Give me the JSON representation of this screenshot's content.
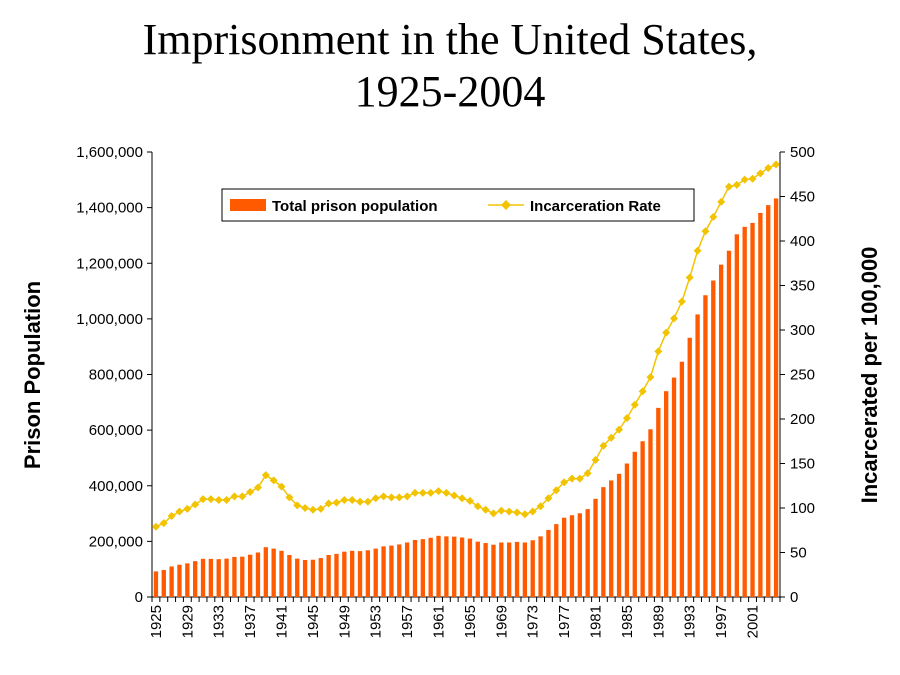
{
  "chart_data": {
    "type": "bar+line",
    "title_line1": "Imprisonment in the United States,",
    "title_line2": "1925-2004",
    "ylabel_left": "Prison Population",
    "ylabel_right": "Incarcerated per 100,000",
    "ylim_left": [
      0,
      1600000
    ],
    "ylim_right": [
      0,
      500
    ],
    "yticks_left": [
      "0",
      "200,000",
      "400,000",
      "600,000",
      "800,000",
      "1,000,000",
      "1,200,000",
      "1,400,000",
      "1,600,000"
    ],
    "yticks_right": [
      "0",
      "50",
      "100",
      "150",
      "200",
      "250",
      "300",
      "350",
      "400",
      "450",
      "500"
    ],
    "xtick_labels": [
      "1925",
      "1929",
      "1933",
      "1937",
      "1941",
      "1945",
      "1949",
      "1953",
      "1957",
      "1961",
      "1965",
      "1969",
      "1973",
      "1977",
      "1981",
      "1985",
      "1989",
      "1993",
      "1997",
      "2001"
    ],
    "legend_placement": "top-center",
    "colors": {
      "bars": "#ff5a00",
      "line": "#f2c300"
    },
    "years": [
      1925,
      1926,
      1927,
      1928,
      1929,
      1930,
      1931,
      1932,
      1933,
      1934,
      1935,
      1936,
      1937,
      1938,
      1939,
      1940,
      1941,
      1942,
      1943,
      1944,
      1945,
      1946,
      1947,
      1948,
      1949,
      1950,
      1951,
      1952,
      1953,
      1954,
      1955,
      1956,
      1957,
      1958,
      1959,
      1960,
      1961,
      1962,
      1963,
      1964,
      1965,
      1966,
      1967,
      1968,
      1969,
      1970,
      1971,
      1972,
      1973,
      1974,
      1975,
      1976,
      1977,
      1978,
      1979,
      1980,
      1981,
      1982,
      1983,
      1984,
      1985,
      1986,
      1987,
      1988,
      1989,
      1990,
      1991,
      1992,
      1993,
      1994,
      1995,
      1996,
      1997,
      1998,
      1999,
      2000,
      2001,
      2002,
      2003,
      2004
    ],
    "series": [
      {
        "name": "Total prison population",
        "kind": "bar",
        "axis": "left",
        "values": [
          92000,
          97000,
          110000,
          116000,
          121000,
          129000,
          137000,
          137000,
          136000,
          138000,
          144000,
          145000,
          152000,
          160000,
          179000,
          174000,
          166000,
          151000,
          138000,
          133000,
          134000,
          140000,
          151000,
          155000,
          163000,
          166000,
          165000,
          168000,
          174000,
          182000,
          185000,
          189000,
          196000,
          205000,
          208000,
          213000,
          220000,
          218000,
          217000,
          214000,
          210000,
          199000,
          194000,
          188000,
          196000,
          196000,
          198000,
          196000,
          204000,
          218000,
          241000,
          262000,
          285000,
          294000,
          301000,
          316000,
          353000,
          395000,
          419000,
          443000,
          480000,
          522000,
          560000,
          603000,
          680000,
          740000,
          789000,
          846000,
          932000,
          1016000,
          1085000,
          1138000,
          1195000,
          1245000,
          1304000,
          1331000,
          1345000,
          1381000,
          1409000,
          1433000
        ]
      },
      {
        "name": "Incarceration Rate",
        "kind": "line",
        "axis": "right",
        "values": [
          79,
          83,
          91,
          96,
          99,
          104,
          110,
          110,
          109,
          109,
          113,
          113,
          118,
          123,
          137,
          131,
          124,
          112,
          103,
          100,
          98,
          99,
          105,
          106,
          109,
          109,
          107,
          107,
          111,
          113,
          112,
          112,
          113,
          117,
          117,
          117,
          119,
          117,
          114,
          111,
          108,
          102,
          98,
          94,
          97,
          96,
          95,
          93,
          96,
          102,
          111,
          120,
          129,
          133,
          133,
          139,
          154,
          170,
          179,
          188,
          201,
          216,
          231,
          247,
          276,
          297,
          313,
          332,
          359,
          389,
          411,
          427,
          444,
          461,
          463,
          469,
          470,
          476,
          482,
          486
        ]
      }
    ]
  }
}
